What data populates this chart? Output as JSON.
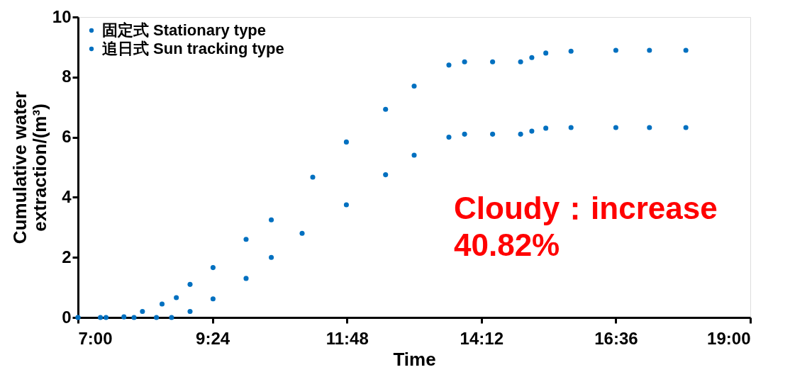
{
  "chart_data": {
    "type": "scatter",
    "xlabel": "Time",
    "ylabel": "Cumulative water extraction/(m³)",
    "xlim": [
      7,
      19
    ],
    "xticks": [
      {
        "value": 7,
        "label": "7:00"
      },
      {
        "value": 9.4,
        "label": "9:24"
      },
      {
        "value": 11.8,
        "label": "11:48"
      },
      {
        "value": 14.2,
        "label": "14:12"
      },
      {
        "value": 16.6,
        "label": "16:36"
      },
      {
        "value": 19,
        "label": "19:00"
      }
    ],
    "ylim": [
      0,
      10
    ],
    "yticks": [
      0,
      2,
      4,
      6,
      8,
      10
    ],
    "grid": false,
    "legend": "top left",
    "marker": "circle",
    "series": [
      {
        "name": "固定式 Stationary type",
        "color": "#0070c0",
        "x": [
          7,
          7.5,
          8,
          8.4,
          8.67,
          9,
          9.41,
          10,
          10.45,
          11,
          11.79,
          12.49,
          13,
          13.62,
          13.9,
          14.4,
          14.9,
          15.1,
          15.35,
          15.8,
          16.6,
          17.2,
          17.85
        ],
        "values": [
          0,
          0,
          0,
          0,
          0,
          0.2,
          0.62,
          1.3,
          2.0,
          2.8,
          3.75,
          4.75,
          5.4,
          6.0,
          6.1,
          6.1,
          6.1,
          6.2,
          6.3,
          6.32,
          6.32,
          6.32,
          6.32
        ]
      },
      {
        "name": "追日式 Sun tracking type",
        "color": "#0070c0",
        "x": [
          7,
          7.4,
          7.82,
          8.15,
          8.5,
          8.755,
          9,
          9.41,
          10,
          10.45,
          11.19,
          11.79,
          12.49,
          13,
          13.62,
          13.9,
          14.4,
          14.9,
          15.1,
          15.35,
          15.8,
          16.6,
          17.2,
          17.85
        ],
        "values": [
          0,
          0,
          0.02,
          0.2,
          0.45,
          0.66,
          1.1,
          1.66,
          2.6,
          3.25,
          4.67,
          5.84,
          6.93,
          7.7,
          8.4,
          8.51,
          8.51,
          8.51,
          8.65,
          8.8,
          8.86,
          8.89,
          8.89,
          8.89
        ]
      }
    ],
    "annotations": [
      "Cloudy：increase",
      "40.82%"
    ]
  }
}
